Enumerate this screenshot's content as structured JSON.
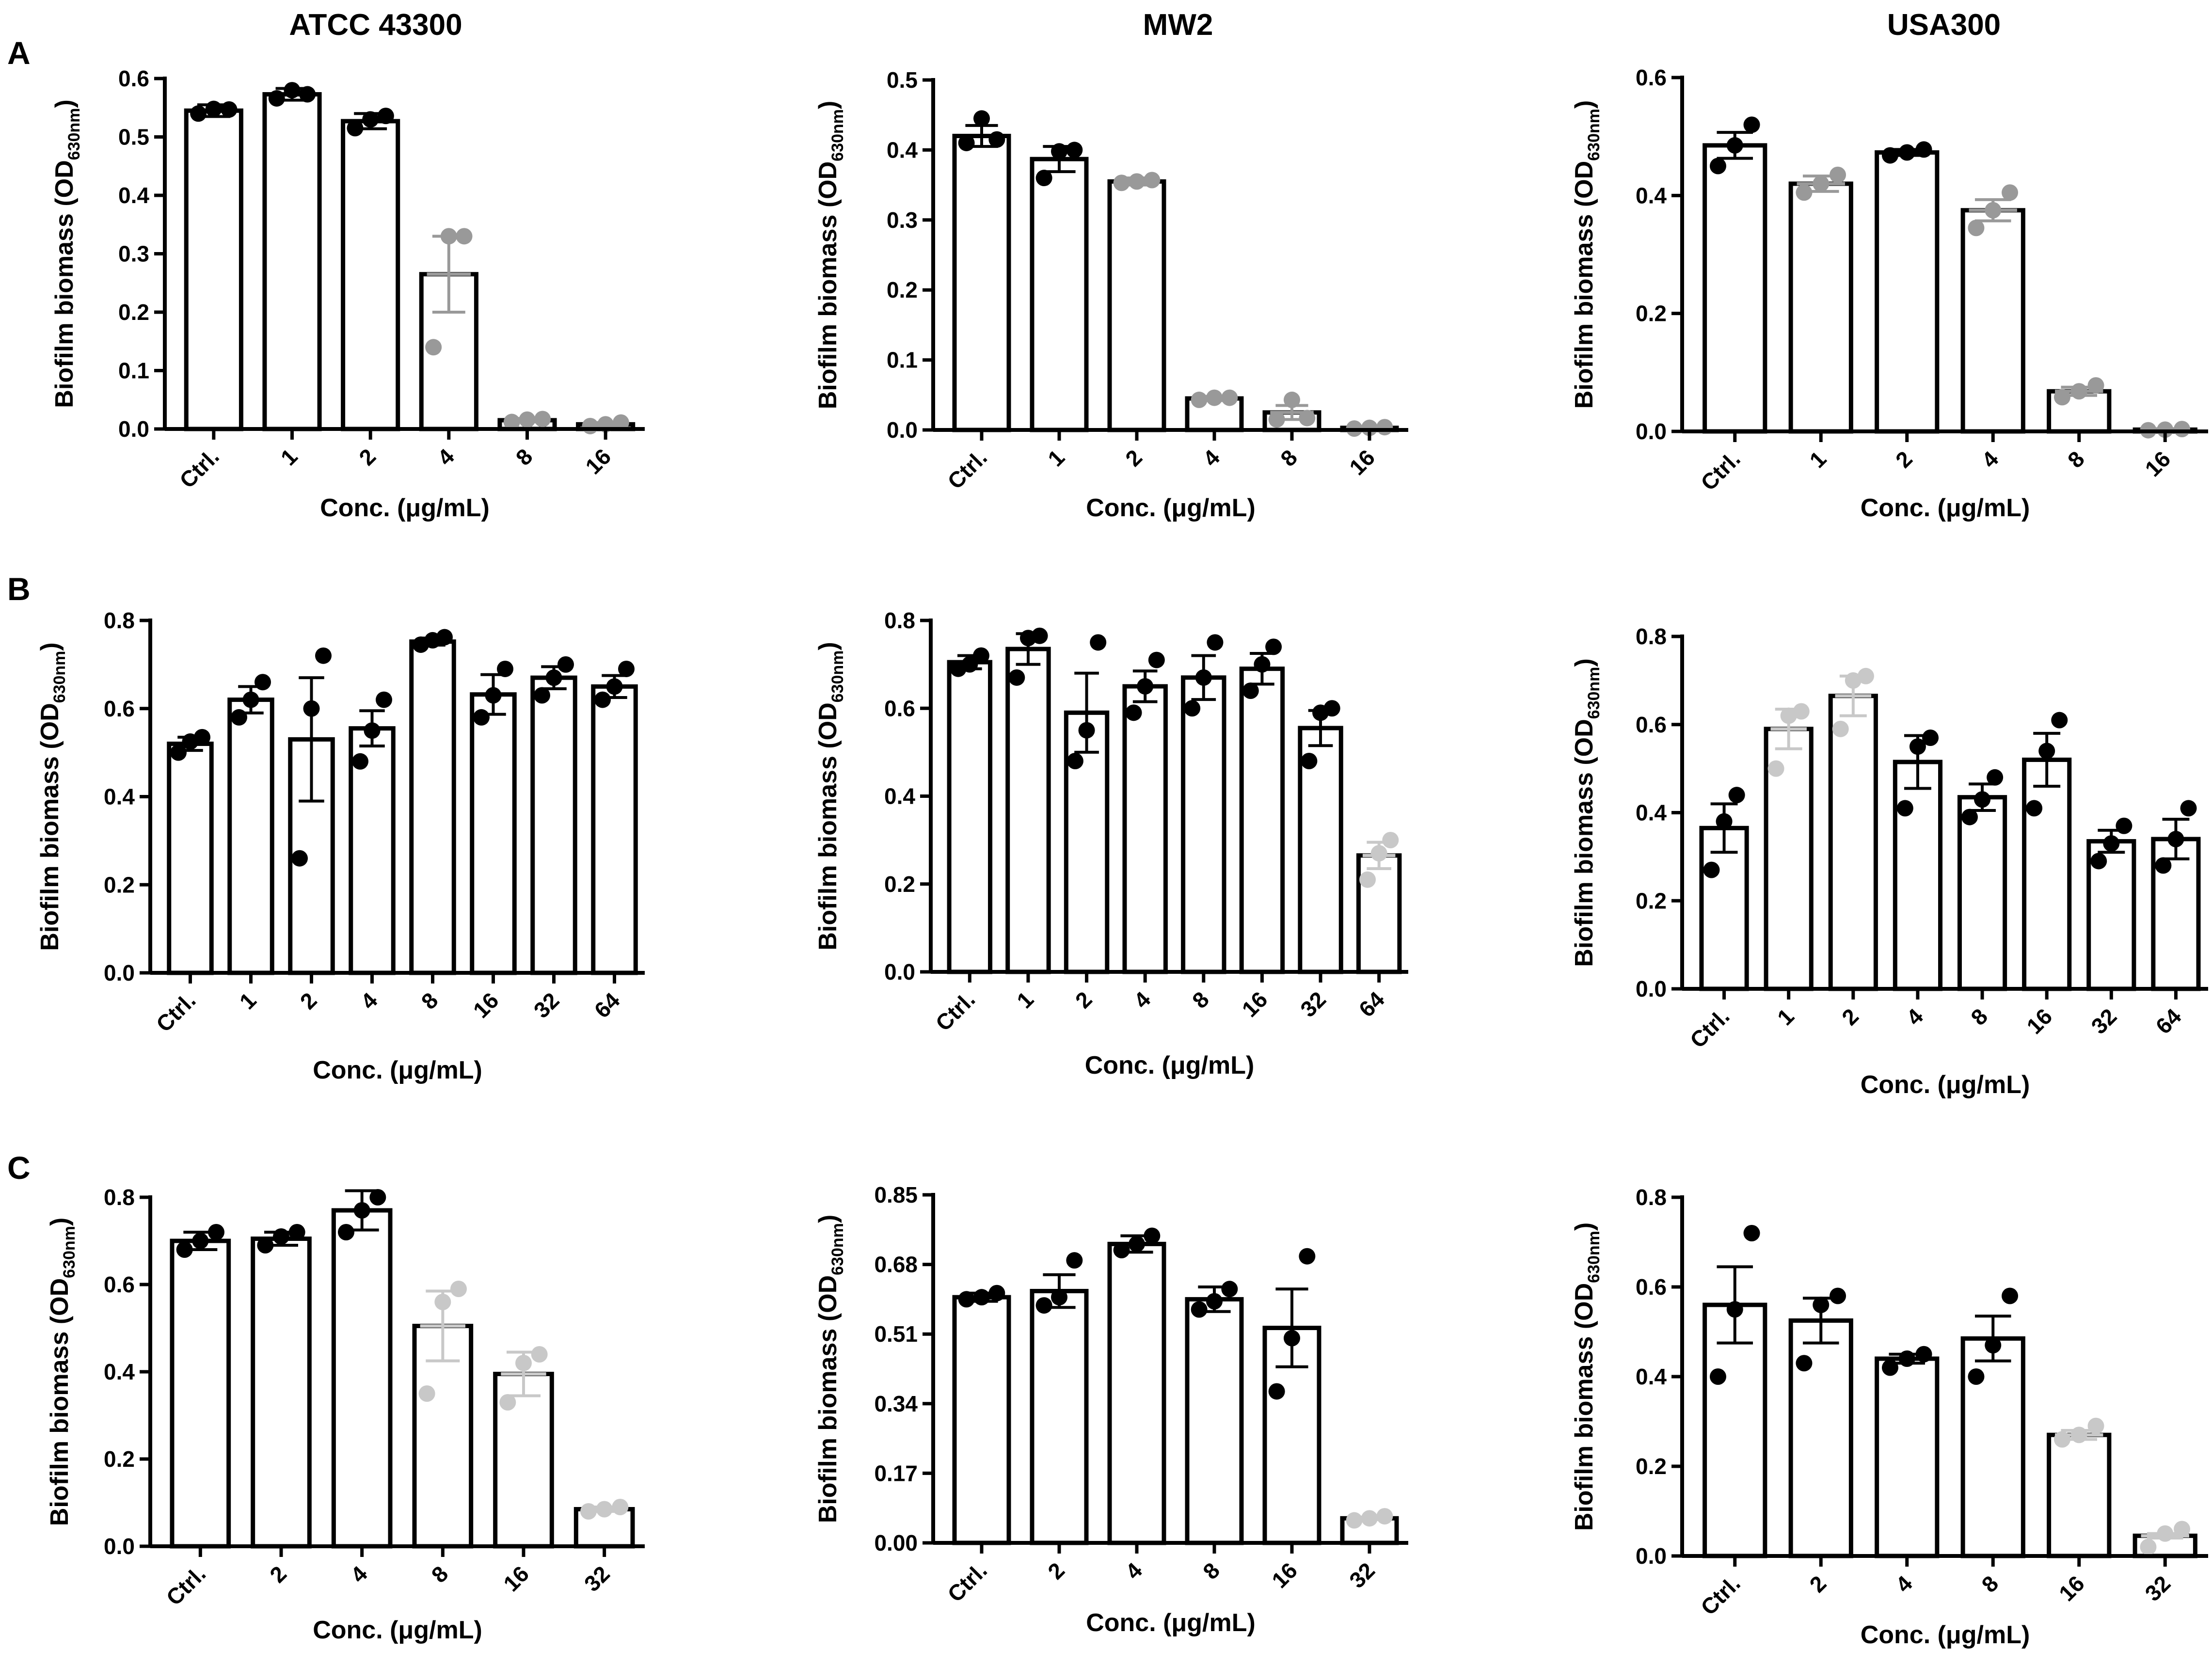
{
  "figure": {
    "column_titles": [
      "ATCC 43300",
      "MW2",
      "USA300"
    ],
    "row_labels": [
      "A",
      "B",
      "C"
    ],
    "colors": {
      "black": "#000000",
      "gray": "#999999",
      "light_gray": "#c8c8c8",
      "bar_fill": "#ffffff"
    }
  },
  "chart_data": [
    {
      "type": "bar",
      "panel": "A",
      "strain": "ATCC 43300",
      "ylabel": "Biofilm biomass (OD",
      "ylabel_sub": "630nm",
      "ylabel_close": ")",
      "xlabel": "Conc. (μg/mL)",
      "categories": [
        "Ctrl.",
        "1",
        "2",
        "4",
        "8",
        "16"
      ],
      "ylim": [
        0,
        0.6
      ],
      "yticks": [
        0,
        0.1,
        0.2,
        0.3,
        0.4,
        0.5,
        0.6
      ],
      "ytick_labels": [
        "0.0",
        "0.1",
        "0.2",
        "0.3",
        "0.4",
        "0.5",
        "0.6"
      ],
      "values": [
        0.545,
        0.573,
        0.527,
        0.265,
        0.015,
        0.008
      ],
      "errors": [
        0.01,
        0.01,
        0.013,
        0.065,
        0.003,
        0.003
      ],
      "points": [
        [
          0.54,
          0.548,
          0.547
        ],
        [
          0.566,
          0.58,
          0.573
        ],
        [
          0.515,
          0.53,
          0.536
        ],
        [
          0.14,
          0.33,
          0.33
        ],
        [
          0.012,
          0.016,
          0.017
        ],
        [
          0.005,
          0.008,
          0.011
        ]
      ],
      "colors": [
        "black",
        "black",
        "black",
        "gray",
        "gray",
        "gray"
      ]
    },
    {
      "type": "bar",
      "panel": "A",
      "strain": "MW2",
      "ylabel": "Biofilm biomass (OD",
      "ylabel_sub": "630nm",
      "ylabel_close": ")",
      "xlabel": "Conc. (μg/mL)",
      "categories": [
        "Ctrl.",
        "1",
        "2",
        "4",
        "8",
        "16"
      ],
      "ylim": [
        0,
        0.5
      ],
      "yticks": [
        0,
        0.1,
        0.2,
        0.3,
        0.4,
        0.5
      ],
      "ytick_labels": [
        "0.0",
        "0.1",
        "0.2",
        "0.3",
        "0.4",
        "0.5"
      ],
      "values": [
        0.42,
        0.387,
        0.355,
        0.045,
        0.025,
        0.003
      ],
      "errors": [
        0.015,
        0.018,
        0.005,
        0.003,
        0.01,
        0.001
      ],
      "points": [
        [
          0.41,
          0.445,
          0.415
        ],
        [
          0.36,
          0.398,
          0.4
        ],
        [
          0.353,
          0.355,
          0.357
        ],
        [
          0.043,
          0.046,
          0.046
        ],
        [
          0.015,
          0.043,
          0.017
        ],
        [
          0.002,
          0.003,
          0.004
        ]
      ],
      "colors": [
        "black",
        "black",
        "gray",
        "gray",
        "gray",
        "gray"
      ]
    },
    {
      "type": "bar",
      "panel": "A",
      "strain": "USA300",
      "ylabel": "Biofilm biomass (OD",
      "ylabel_sub": "630nm",
      "ylabel_close": ")",
      "xlabel": "Conc. (μg/mL)",
      "categories": [
        "Ctrl.",
        "1",
        "2",
        "4",
        "8",
        "16"
      ],
      "ylim": [
        0,
        0.6
      ],
      "yticks": [
        0,
        0.2,
        0.4,
        0.6
      ],
      "ytick_labels": [
        "0.0",
        "0.2",
        "0.4",
        "0.6"
      ],
      "values": [
        0.485,
        0.42,
        0.473,
        0.375,
        0.068,
        0.003
      ],
      "errors": [
        0.022,
        0.013,
        0.005,
        0.018,
        0.007,
        0.001
      ],
      "points": [
        [
          0.45,
          0.485,
          0.52
        ],
        [
          0.405,
          0.42,
          0.435
        ],
        [
          0.468,
          0.473,
          0.478
        ],
        [
          0.345,
          0.375,
          0.405
        ],
        [
          0.058,
          0.068,
          0.078
        ],
        [
          0.002,
          0.003,
          0.004
        ]
      ],
      "colors": [
        "black",
        "gray",
        "black",
        "gray",
        "gray",
        "gray"
      ]
    },
    {
      "type": "bar",
      "panel": "B",
      "strain": "ATCC 43300",
      "ylabel": "Biofilm biomass (OD",
      "ylabel_sub": "630nm",
      "ylabel_close": ")",
      "xlabel": "Conc. (μg/mL)",
      "categories": [
        "Ctrl.",
        "1",
        "2",
        "4",
        "8",
        "16",
        "32",
        "64"
      ],
      "ylim": [
        0,
        0.8
      ],
      "yticks": [
        0,
        0.2,
        0.4,
        0.6,
        0.8
      ],
      "ytick_labels": [
        "0.0",
        "0.2",
        "0.4",
        "0.6",
        "0.8"
      ],
      "values": [
        0.52,
        0.62,
        0.53,
        0.555,
        0.752,
        0.632,
        0.67,
        0.65
      ],
      "errors": [
        0.015,
        0.03,
        0.14,
        0.04,
        0.008,
        0.045,
        0.025,
        0.025
      ],
      "points": [
        [
          0.5,
          0.525,
          0.535
        ],
        [
          0.58,
          0.62,
          0.66
        ],
        [
          0.26,
          0.6,
          0.72
        ],
        [
          0.48,
          0.55,
          0.62
        ],
        [
          0.745,
          0.755,
          0.762
        ],
        [
          0.58,
          0.63,
          0.69
        ],
        [
          0.63,
          0.67,
          0.7
        ],
        [
          0.62,
          0.65,
          0.69
        ]
      ],
      "colors": [
        "black",
        "black",
        "black",
        "black",
        "black",
        "black",
        "black",
        "black"
      ]
    },
    {
      "type": "bar",
      "panel": "B",
      "strain": "MW2",
      "ylabel": "Biofilm biomass (OD",
      "ylabel_sub": "630nm",
      "ylabel_close": ")",
      "xlabel": "Conc. (μg/mL)",
      "categories": [
        "Ctrl.",
        "1",
        "2",
        "4",
        "8",
        "16",
        "32",
        "64"
      ],
      "ylim": [
        0,
        0.8
      ],
      "yticks": [
        0,
        0.2,
        0.4,
        0.6,
        0.8
      ],
      "ytick_labels": [
        "0.0",
        "0.2",
        "0.4",
        "0.6",
        "0.8"
      ],
      "values": [
        0.705,
        0.735,
        0.59,
        0.65,
        0.67,
        0.69,
        0.555,
        0.265
      ],
      "errors": [
        0.015,
        0.035,
        0.09,
        0.035,
        0.05,
        0.035,
        0.04,
        0.03
      ],
      "points": [
        [
          0.69,
          0.7,
          0.72
        ],
        [
          0.67,
          0.76,
          0.765
        ],
        [
          0.48,
          0.55,
          0.75
        ],
        [
          0.59,
          0.65,
          0.71
        ],
        [
          0.6,
          0.67,
          0.75
        ],
        [
          0.64,
          0.7,
          0.74
        ],
        [
          0.48,
          0.59,
          0.6
        ],
        [
          0.21,
          0.27,
          0.3
        ]
      ],
      "colors": [
        "black",
        "black",
        "black",
        "black",
        "black",
        "black",
        "black",
        "light_gray"
      ]
    },
    {
      "type": "bar",
      "panel": "B",
      "strain": "USA300",
      "ylabel": "Biofilm biomass (OD",
      "ylabel_sub": "630nm",
      "ylabel_close": ")",
      "xlabel": "Conc. (μg/mL)",
      "categories": [
        "Ctrl.",
        "1",
        "2",
        "4",
        "8",
        "16",
        "32",
        "64"
      ],
      "ylim": [
        0,
        0.8
      ],
      "yticks": [
        0,
        0.2,
        0.4,
        0.6,
        0.8
      ],
      "ytick_labels": [
        "0.0",
        "0.2",
        "0.4",
        "0.6",
        "0.8"
      ],
      "values": [
        0.365,
        0.59,
        0.665,
        0.515,
        0.435,
        0.52,
        0.335,
        0.34
      ],
      "errors": [
        0.055,
        0.045,
        0.045,
        0.06,
        0.03,
        0.06,
        0.025,
        0.045
      ],
      "points": [
        [
          0.27,
          0.38,
          0.44
        ],
        [
          0.5,
          0.62,
          0.63
        ],
        [
          0.59,
          0.7,
          0.71
        ],
        [
          0.41,
          0.55,
          0.57
        ],
        [
          0.39,
          0.43,
          0.48
        ],
        [
          0.41,
          0.54,
          0.61
        ],
        [
          0.29,
          0.33,
          0.37
        ],
        [
          0.28,
          0.34,
          0.41
        ]
      ],
      "colors": [
        "black",
        "light_gray",
        "light_gray",
        "black",
        "black",
        "black",
        "black",
        "black"
      ]
    },
    {
      "type": "bar",
      "panel": "C",
      "strain": "ATCC 43300",
      "ylabel": "Biofilm biomass (OD",
      "ylabel_sub": "630nm",
      "ylabel_close": ")",
      "xlabel": "Conc. (μg/mL)",
      "categories": [
        "Ctrl.",
        "2",
        "4",
        "8",
        "16",
        "32"
      ],
      "ylim": [
        0,
        0.8
      ],
      "yticks": [
        0,
        0.2,
        0.4,
        0.6,
        0.8
      ],
      "ytick_labels": [
        "0.0",
        "0.2",
        "0.4",
        "0.6",
        "0.8"
      ],
      "values": [
        0.7,
        0.705,
        0.77,
        0.505,
        0.395,
        0.085
      ],
      "errors": [
        0.02,
        0.015,
        0.045,
        0.08,
        0.05,
        0.005
      ],
      "points": [
        [
          0.68,
          0.7,
          0.72
        ],
        [
          0.69,
          0.71,
          0.72
        ],
        [
          0.72,
          0.77,
          0.8
        ],
        [
          0.35,
          0.56,
          0.59
        ],
        [
          0.33,
          0.42,
          0.44
        ],
        [
          0.08,
          0.085,
          0.09
        ]
      ],
      "colors": [
        "black",
        "black",
        "black",
        "light_gray",
        "light_gray",
        "light_gray"
      ]
    },
    {
      "type": "bar",
      "panel": "C",
      "strain": "MW2",
      "ylabel": "Biofilm biomass (OD",
      "ylabel_sub": "630nm",
      "ylabel_close": ")",
      "xlabel": "Conc. (μg/mL)",
      "categories": [
        "Ctrl.",
        "2",
        "4",
        "8",
        "16",
        "32"
      ],
      "ylim": [
        0,
        0.85
      ],
      "yticks": [
        0,
        0.17,
        0.34,
        0.51,
        0.68,
        0.85
      ],
      "ytick_labels": [
        "0.00",
        "0.17",
        "0.34",
        "0.51",
        "0.68",
        "0.85"
      ],
      "values": [
        0.6,
        0.615,
        0.73,
        0.595,
        0.525,
        0.06
      ],
      "errors": [
        0.01,
        0.04,
        0.02,
        0.03,
        0.095,
        0.003
      ],
      "points": [
        [
          0.595,
          0.6,
          0.61
        ],
        [
          0.58,
          0.6,
          0.69
        ],
        [
          0.715,
          0.73,
          0.75
        ],
        [
          0.57,
          0.59,
          0.62
        ],
        [
          0.37,
          0.5,
          0.7
        ],
        [
          0.055,
          0.06,
          0.065
        ]
      ],
      "colors": [
        "black",
        "black",
        "black",
        "black",
        "black",
        "light_gray"
      ]
    },
    {
      "type": "bar",
      "panel": "C",
      "strain": "USA300",
      "ylabel": "Biofilm biomass (OD",
      "ylabel_sub": "630nm",
      "ylabel_close": ")",
      "xlabel": "Conc. (μg/mL)",
      "categories": [
        "Ctrl.",
        "2",
        "4",
        "8",
        "16",
        "32"
      ],
      "ylim": [
        0,
        0.8
      ],
      "yticks": [
        0,
        0.2,
        0.4,
        0.6,
        0.8
      ],
      "ytick_labels": [
        "0.0",
        "0.2",
        "0.4",
        "0.6",
        "0.8"
      ],
      "values": [
        0.56,
        0.525,
        0.44,
        0.485,
        0.27,
        0.045
      ],
      "errors": [
        0.085,
        0.05,
        0.01,
        0.05,
        0.01,
        0.005
      ],
      "points": [
        [
          0.4,
          0.55,
          0.72
        ],
        [
          0.43,
          0.56,
          0.58
        ],
        [
          0.42,
          0.44,
          0.45
        ],
        [
          0.4,
          0.47,
          0.58
        ],
        [
          0.26,
          0.27,
          0.29
        ],
        [
          0.02,
          0.05,
          0.06
        ]
      ],
      "colors": [
        "black",
        "black",
        "black",
        "black",
        "light_gray",
        "light_gray"
      ]
    }
  ]
}
